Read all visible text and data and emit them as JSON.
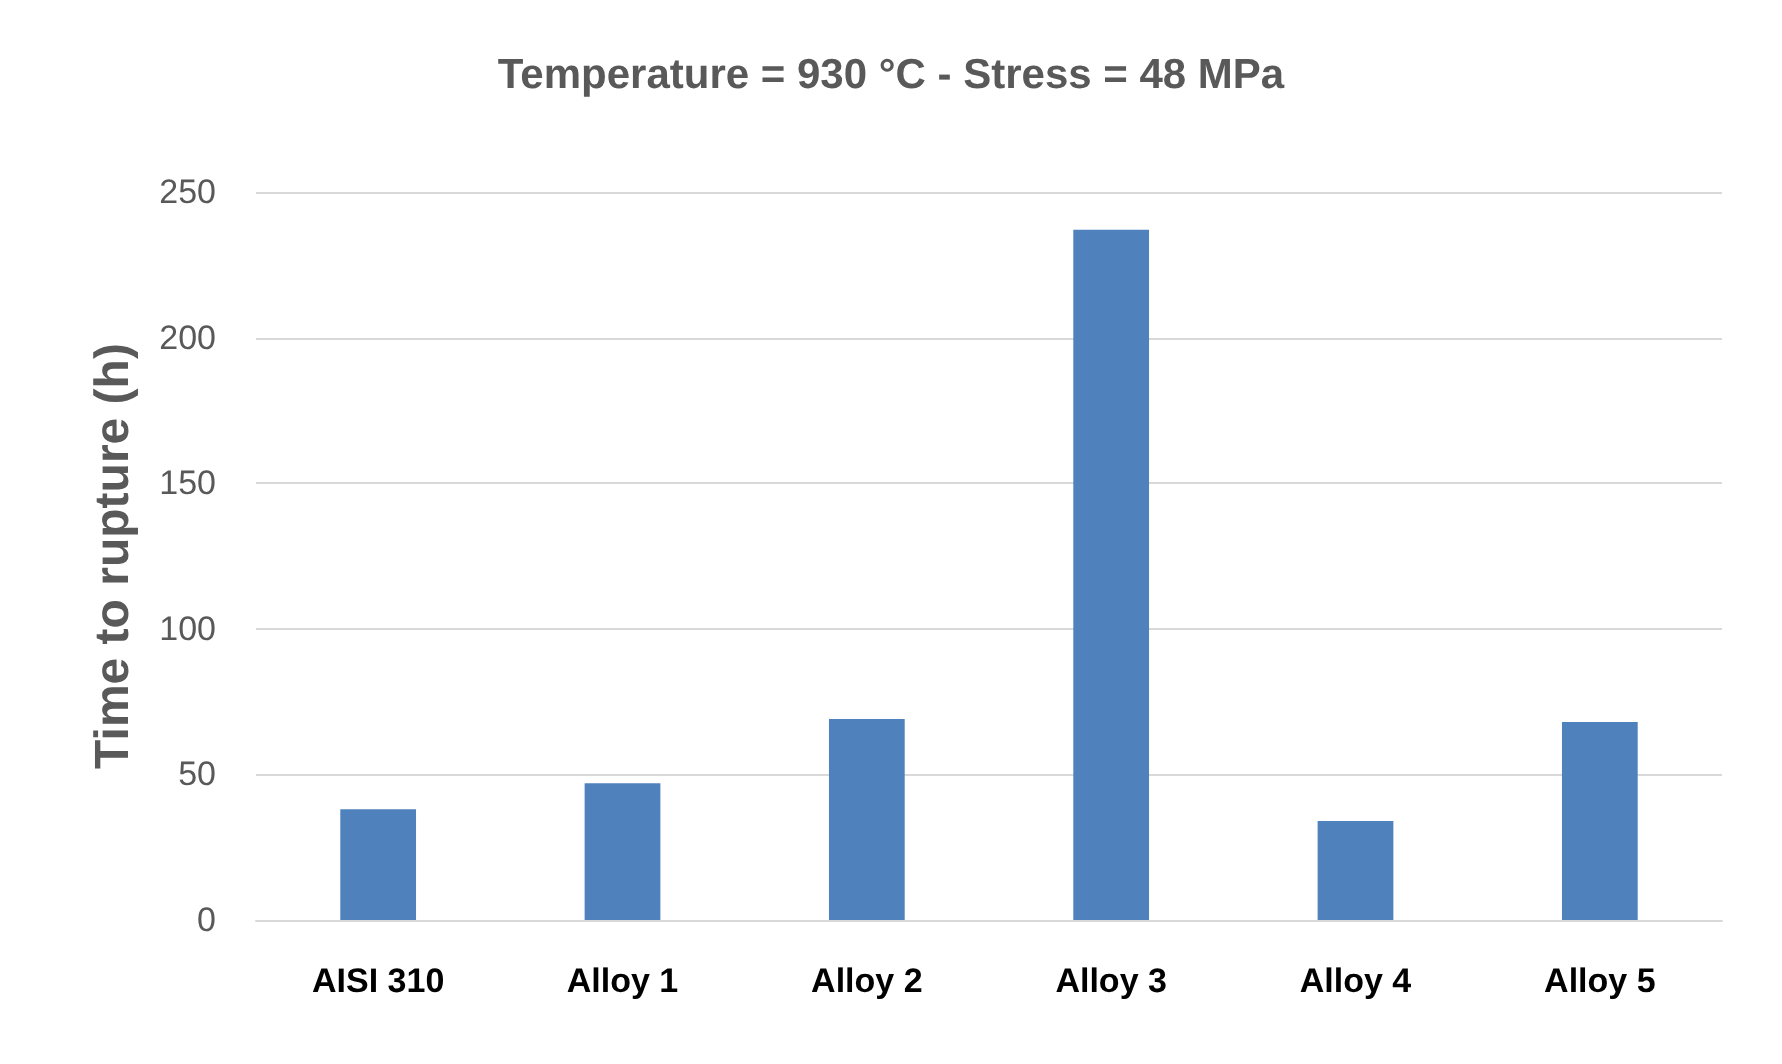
{
  "chart_data": {
    "type": "bar",
    "title": "Temperature = 930 °C - Stress = 48 MPa",
    "ylabel": "Time to rupture (h)",
    "categories": [
      "AISI 310",
      "Alloy 1",
      "Alloy 2",
      "Alloy 3",
      "Alloy 4",
      "Alloy 5"
    ],
    "values": [
      38,
      47,
      69,
      237,
      34,
      68
    ],
    "color": "#4f81bd",
    "ylim": [
      0,
      250
    ],
    "yticks": [
      0,
      50,
      100,
      150,
      200,
      250
    ],
    "grid": "y"
  }
}
